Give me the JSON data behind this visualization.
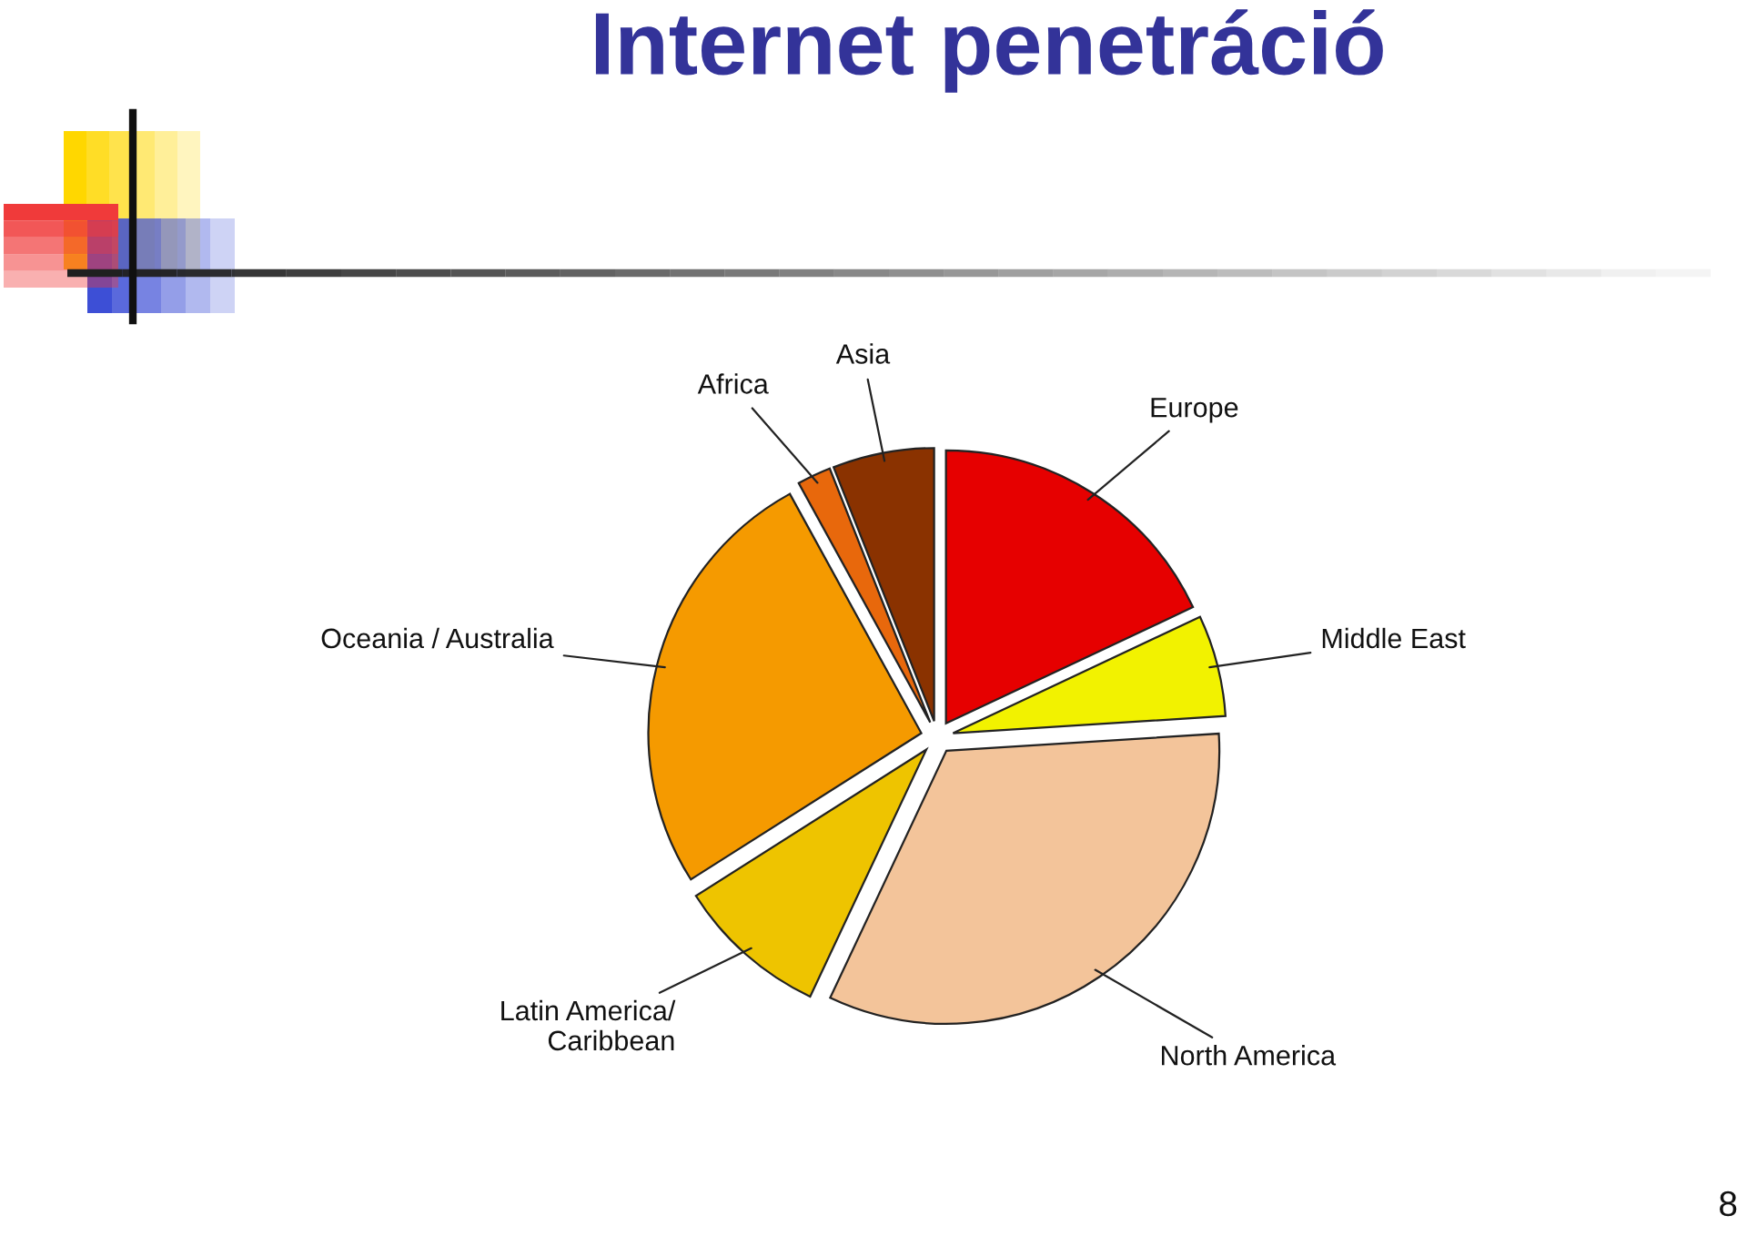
{
  "chart_data": {
    "type": "pie",
    "title": "Internet penetráció",
    "categories": [
      "Europe",
      "Middle East",
      "North America",
      "Latin America/\nCaribbean",
      "Oceania / Australia",
      "Africa",
      "Asia"
    ],
    "values": [
      18,
      6,
      33,
      9,
      26,
      2,
      6
    ],
    "colors": [
      "#e60000",
      "#f2f200",
      "#f3c49a",
      "#eec400",
      "#f59a00",
      "#e8680c",
      "#8a3200"
    ],
    "annotations": [
      "8"
    ]
  }
}
